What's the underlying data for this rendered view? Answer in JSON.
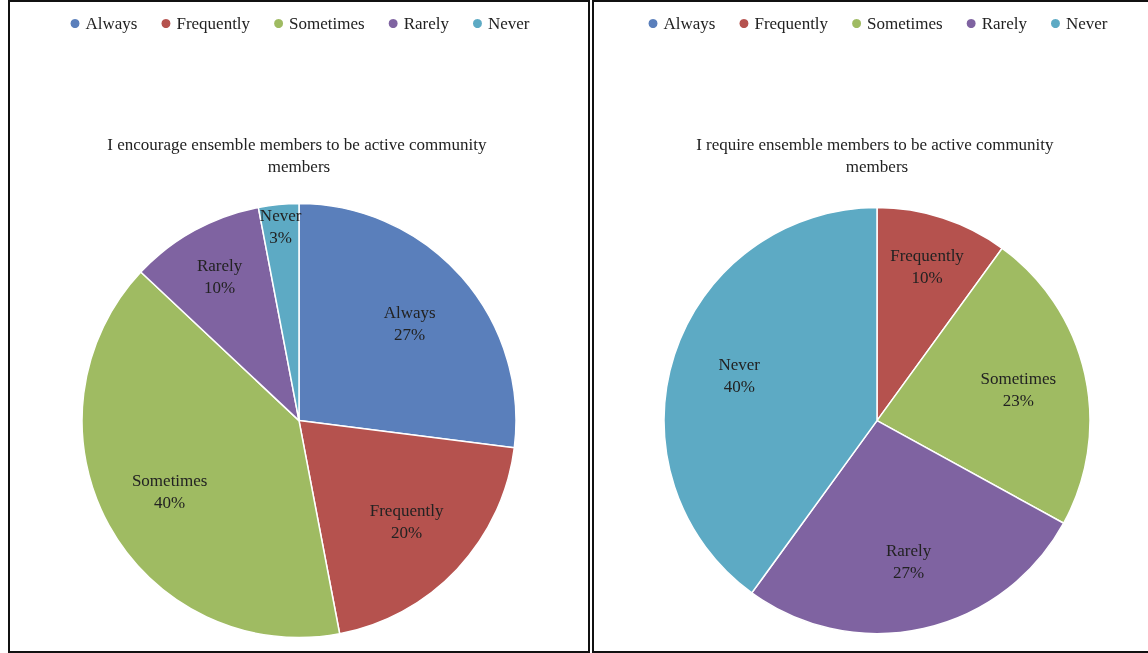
{
  "chart_data": [
    {
      "type": "pie",
      "title": "I encourage ensemble members to be active community members",
      "categories": [
        "Always",
        "Frequently",
        "Sometimes",
        "Rarely",
        "Never"
      ],
      "values": [
        27,
        20,
        40,
        10,
        3
      ],
      "value_labels": [
        "27%",
        "20%",
        "40%",
        "10%",
        "3%"
      ],
      "colors": [
        "#5a7fbb",
        "#b5524e",
        "#9fbb62",
        "#7f63a1",
        "#5daac4"
      ],
      "legend": "top"
    },
    {
      "type": "pie",
      "title": "I require ensemble members to be active community members",
      "categories": [
        "Always",
        "Frequently",
        "Sometimes",
        "Rarely",
        "Never"
      ],
      "values": [
        0,
        10,
        23,
        27,
        40
      ],
      "value_labels": [
        null,
        "10%",
        "23%",
        "27%",
        "40%"
      ],
      "colors": [
        "#5a7fbb",
        "#b5524e",
        "#9fbb62",
        "#7f63a1",
        "#5daac4"
      ],
      "legend": "top"
    }
  ]
}
